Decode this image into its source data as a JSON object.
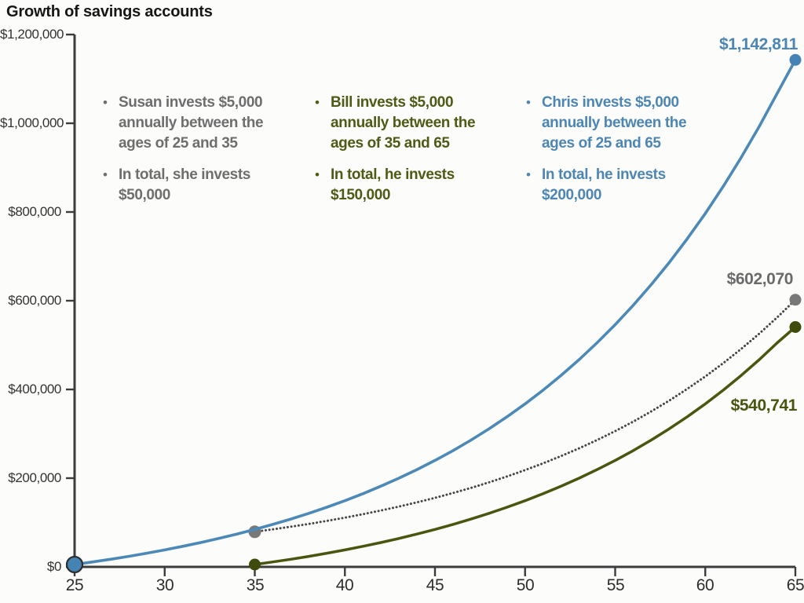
{
  "chart_data": {
    "type": "line",
    "title": "Growth of savings accounts",
    "xlabel": "",
    "ylabel": "",
    "grid": false,
    "axis_color": "#3c3c3c",
    "tick_label_color": "#2d2d2d",
    "x": {
      "min": 25,
      "max": 65,
      "ticks": [
        25,
        30,
        35,
        40,
        45,
        50,
        55,
        60,
        65
      ],
      "tick_labels": [
        "25",
        "30",
        "35",
        "40",
        "45",
        "50",
        "55",
        "60",
        "65"
      ]
    },
    "y": {
      "min": 0,
      "max": 1200000,
      "ticks": [
        1200000,
        1000000,
        800000,
        600000,
        400000,
        200000,
        0
      ],
      "tick_labels": [
        "$1,200,000",
        "$1,000,000",
        "$800,000",
        "$600,000",
        "$400,000",
        "$200,000",
        "$0"
      ]
    },
    "series": [
      {
        "id": "susan",
        "name": "Susan",
        "z": 1,
        "color": "#474747",
        "style": "dotted",
        "dash": "0.1 4.6",
        "width": 3,
        "start_age": 25,
        "draw_from_age": 35,
        "end_label": "$602,070",
        "end_value": 602070,
        "total_invested": 50000,
        "values": [
          5350,
          11075,
          17200,
          23754,
          30766,
          38270,
          46299,
          54890,
          64082,
          73918,
          79092,
          84628,
          90552,
          96891,
          103673,
          110930,
          118695,
          127004,
          135894,
          145407,
          155585,
          166476,
          178129,
          190598,
          203940,
          218216,
          233491,
          249835,
          267324,
          286036,
          306059,
          327483,
          350407,
          374935,
          401180,
          429263,
          459311,
          491463,
          525865,
          562676,
          602070
        ]
      },
      {
        "id": "bill",
        "name": "Bill",
        "z": 2,
        "color": "#49560f",
        "style": "solid",
        "dash": "",
        "width": 3.5,
        "start_age": 35,
        "draw_from_age": 35,
        "end_label": "$540,741",
        "end_value": 540741,
        "total_invested": 150000,
        "values": [
          5350,
          11075,
          17200,
          23754,
          30766,
          38270,
          46299,
          54890,
          64082,
          73918,
          84442,
          95703,
          107752,
          120645,
          134440,
          149201,
          164995,
          181895,
          199977,
          219326,
          240029,
          262181,
          285883,
          311245,
          338382,
          367419,
          398488,
          431733,
          467304,
          505365,
          540741
        ]
      },
      {
        "id": "chris",
        "name": "Chris",
        "z": 4,
        "color": "#4d89b6",
        "style": "solid",
        "dash": "",
        "width": 3.6,
        "start_age": 25,
        "draw_from_age": 25,
        "end_label": "$1,142,811",
        "end_value": 1142811,
        "total_invested": 200000,
        "values": [
          5350,
          11075,
          17200,
          23754,
          30766,
          38270,
          46299,
          54890,
          64082,
          73918,
          84442,
          95703,
          107752,
          120645,
          134440,
          149201,
          164995,
          181895,
          199977,
          219326,
          240029,
          262181,
          285883,
          311245,
          338382,
          367419,
          398488,
          431733,
          467304,
          505365,
          546091,
          589667,
          636294,
          686184,
          739567,
          796687,
          857805,
          923201,
          993176,
          1068048,
          1142811
        ]
      }
    ],
    "markers": [
      {
        "id": "susan-age35-dot",
        "z": 3,
        "age": 35,
        "value": 79092,
        "r": 8,
        "color": "#787878",
        "ring": ""
      },
      {
        "id": "bill-age35-dot",
        "z": 3,
        "age": 35,
        "value": 5350,
        "r": 7.5,
        "color": "#3f4b0c",
        "ring": ""
      },
      {
        "id": "chris-start-dot",
        "z": 5,
        "age": 25,
        "value": 5350,
        "r": 10,
        "color": "#4583b4",
        "ring": "#2e2e2e"
      },
      {
        "id": "chris-end-dot",
        "z": 5,
        "age": 65,
        "value": 1142811,
        "r": 7.5,
        "color": "#4583b4",
        "ring": ""
      },
      {
        "id": "susan-end-dot",
        "z": 5,
        "age": 65,
        "value": 602070,
        "r": 7.5,
        "color": "#787878",
        "ring": ""
      },
      {
        "id": "bill-end-dot",
        "z": 5,
        "age": 65,
        "value": 540741,
        "r": 7.5,
        "color": "#3f4b0c",
        "ring": ""
      }
    ]
  },
  "annotations": [
    {
      "id": "susan",
      "color": "#6e6e6e",
      "items": [
        {
          "lines": [
            "Susan invests $5,000",
            "annually between the",
            "ages of 25 and 35"
          ]
        },
        {
          "lines": [
            "In total, she invests",
            "$50,000"
          ]
        }
      ]
    },
    {
      "id": "bill",
      "color": "#4e5a15",
      "items": [
        {
          "lines": [
            "Bill invests $5,000",
            "annually between the",
            "ages of 35 and 65"
          ]
        },
        {
          "lines": [
            "In total, he invests",
            "$150,000"
          ]
        }
      ]
    },
    {
      "id": "chris",
      "color": "#4d86b2",
      "items": [
        {
          "lines": [
            "Chris invests $5,000",
            "annually between the",
            "ages of 25 and 65"
          ]
        },
        {
          "lines": [
            "In total, he invests",
            "$200,000"
          ]
        }
      ]
    }
  ],
  "end_label_colors": {
    "susan": "#6a6a6a",
    "bill": "#48540f",
    "chris": "#4d86b2"
  }
}
